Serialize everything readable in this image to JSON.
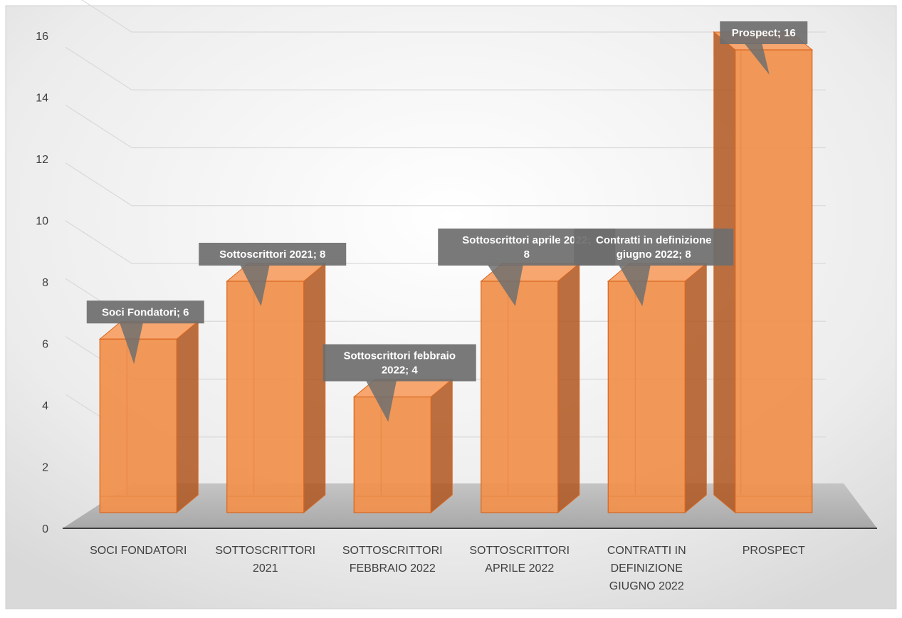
{
  "chart_data": {
    "type": "bar",
    "categories": [
      [
        "SOCI FONDATORI"
      ],
      [
        "SOTTOSCRITTORI",
        "2021"
      ],
      [
        "SOTTOSCRITTORI",
        "FEBBRAIO 2022"
      ],
      [
        "SOTTOSCRITTORI",
        "APRILE 2022"
      ],
      [
        "CONTRATTI IN",
        "DEFINIZIONE",
        "GIUGNO 2022"
      ],
      [
        "PROSPECT"
      ]
    ],
    "values": [
      6,
      8,
      4,
      8,
      8,
      16
    ],
    "data_labels": [
      [
        "Soci Fondatori; 6"
      ],
      [
        "Sottoscrittori 2021; 8"
      ],
      [
        "Sottoscrittori febbraio",
        "2022; 4"
      ],
      [
        "Sottoscrittori aprile 2022;",
        "8"
      ],
      [
        "Contratti in definizione",
        "giugno 2022; 8"
      ],
      [
        "Prospect; 16"
      ]
    ],
    "yticks": [
      "0",
      "2",
      "4",
      "6",
      "8",
      "10",
      "12",
      "14",
      "16"
    ],
    "ylim": [
      0,
      16
    ],
    "grid": true,
    "legend": "none",
    "title": "",
    "xlabel": "",
    "ylabel": "",
    "colors": {
      "bar_front": "#F0914E",
      "bar_side": "#B0561F",
      "bar_edge": "#D9661F",
      "label_box": "#6E6E6E",
      "floor": "#B8B8B8",
      "gridline": "#D9D9D9"
    }
  }
}
